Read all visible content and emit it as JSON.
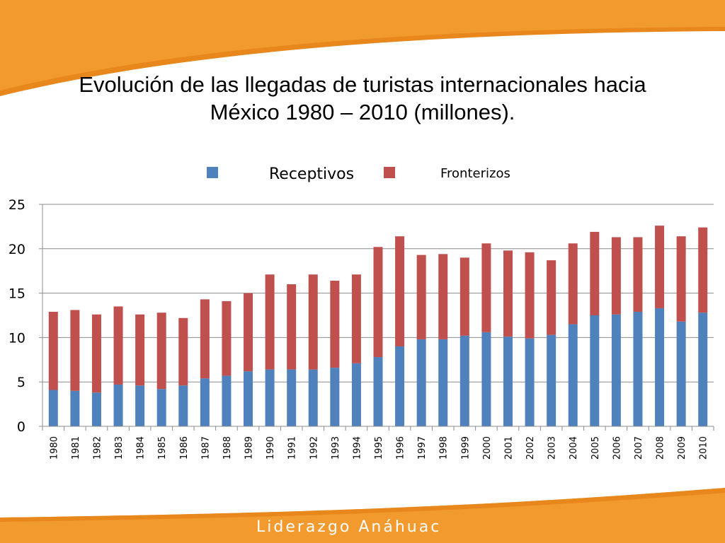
{
  "slide": {
    "title_line1": "Evolución de las llegadas de turistas internacionales hacia",
    "title_line2": "México 1980 – 2010 (millones).",
    "footer_brand": "Liderazgo Anáhuac",
    "colors": {
      "orange": "#F29A2E",
      "orange_dark": "#E8871B"
    }
  },
  "chart_data": {
    "type": "bar",
    "stacked": true,
    "categories": [
      "1980",
      "1981",
      "1982",
      "1983",
      "1984",
      "1985",
      "1986",
      "1987",
      "1988",
      "1989",
      "1990",
      "1991",
      "1992",
      "1993",
      "1994",
      "1995",
      "1996",
      "1997",
      "1998",
      "1999",
      "2000",
      "2001",
      "2002",
      "2003",
      "2004",
      "2005",
      "2006",
      "2007",
      "2008",
      "2009",
      "2010"
    ],
    "series": [
      {
        "name": "Receptivos",
        "color": "#4F81BD",
        "values": [
          4.1,
          4.0,
          3.8,
          4.7,
          4.6,
          4.2,
          4.6,
          5.4,
          5.7,
          6.2,
          6.4,
          6.4,
          6.4,
          6.6,
          7.1,
          7.8,
          9.0,
          9.8,
          9.8,
          10.2,
          10.6,
          10.1,
          9.9,
          10.3,
          11.5,
          12.5,
          12.6,
          12.9,
          13.3,
          11.8,
          12.8
        ]
      },
      {
        "name": "Fronterizos",
        "color": "#C0504D",
        "values": [
          8.8,
          9.1,
          8.8,
          8.8,
          8.0,
          8.6,
          7.6,
          8.9,
          8.4,
          8.8,
          10.7,
          9.6,
          10.7,
          9.8,
          10.0,
          12.4,
          12.4,
          9.5,
          9.6,
          8.8,
          10.0,
          9.7,
          9.7,
          8.4,
          9.1,
          9.4,
          8.7,
          8.4,
          9.3,
          9.6,
          9.6
        ]
      }
    ],
    "ylim": [
      0,
      25
    ],
    "yticks": [
      0,
      5,
      10,
      15,
      20,
      25
    ],
    "grid": true,
    "legend_position": "top"
  }
}
